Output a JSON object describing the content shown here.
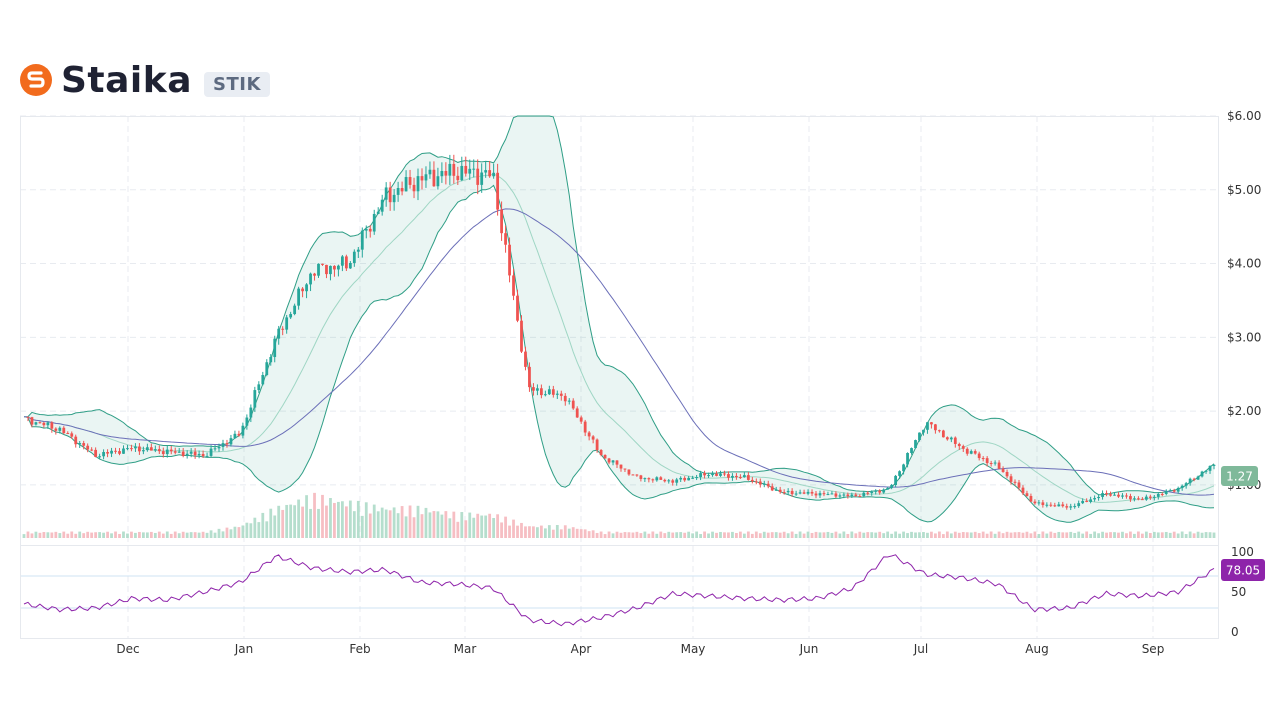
{
  "header": {
    "name": "Staika",
    "ticker": "STIK",
    "brand_color": "#f26b1d"
  },
  "colors": {
    "up": "#26a69a",
    "down": "#ef5350",
    "band": "#2f9e86",
    "ma": "#6b6fb8",
    "rsi": "#8e24aa",
    "last_price_label": "#7fb99a"
  },
  "chart_data": [
    {
      "type": "candlestick",
      "title": "",
      "currency_prefix": "$",
      "x_ticks": [
        "Dec",
        "Jan",
        "Feb",
        "Mar",
        "Apr",
        "May",
        "Jun",
        "Jul",
        "Aug",
        "Sep"
      ],
      "y_ticks": [
        "$1.00",
        "$2.00",
        "$3.00",
        "$4.00",
        "$5.00",
        "$6.00"
      ],
      "ylim": [
        0.28,
        6.0
      ],
      "last_price": "1.27",
      "grid": true,
      "overlays": [
        "bollinger-bands",
        "moving-average"
      ],
      "series": [
        {
          "name": "",
          "x": [
            "Nov 05",
            "Nov 19",
            "Dec 01",
            "Dec 15",
            "Jan 01",
            "Jan 15",
            "Jan 22",
            "Jan 29",
            "Feb 05",
            "Feb 12",
            "Feb 19",
            "Mar 01",
            "Mar 15",
            "Mar 28",
            "Apr 01",
            "Apr 05",
            "Apr 12",
            "Apr 19",
            "Apr 26",
            "May 01",
            "May 15",
            "Jun 01",
            "Jun 15",
            "Jul 01",
            "Jul 12",
            "Jul 15",
            "Jul 22",
            "Jul 29",
            "Aug 01",
            "Aug 08",
            "Aug 15",
            "Sep 01",
            "Sep 10",
            "Sep 18"
          ],
          "close": [
            1.9,
            1.75,
            1.4,
            1.5,
            1.45,
            1.4,
            1.7,
            3.0,
            3.9,
            4.0,
            4.9,
            5.15,
            5.25,
            5.2,
            2.3,
            2.2,
            1.4,
            1.1,
            1.05,
            1.15,
            1.1,
            0.9,
            0.88,
            0.85,
            0.95,
            1.85,
            1.5,
            1.25,
            0.75,
            0.7,
            0.88,
            0.8,
            0.95,
            1.27
          ]
        }
      ]
    },
    {
      "type": "bar",
      "name": "",
      "values": [
        1,
        1,
        1,
        1,
        1,
        1,
        2,
        5,
        7,
        6,
        5,
        5,
        4,
        4,
        2,
        2,
        1,
        1,
        1,
        1,
        1,
        1,
        1,
        1,
        1,
        1,
        1,
        1,
        1,
        1,
        1,
        1,
        1,
        1
      ]
    },
    {
      "type": "line",
      "name": "",
      "ylim": [
        0,
        100
      ],
      "y_ticks": [
        "0",
        "50",
        "100"
      ],
      "last_value": "78.05",
      "values": [
        35,
        28,
        30,
        42,
        40,
        50,
        62,
        95,
        80,
        75,
        78,
        62,
        60,
        55,
        15,
        10,
        18,
        30,
        48,
        45,
        42,
        40,
        42,
        55,
        98,
        72,
        68,
        60,
        28,
        30,
        48,
        45,
        50,
        78
      ]
    }
  ]
}
